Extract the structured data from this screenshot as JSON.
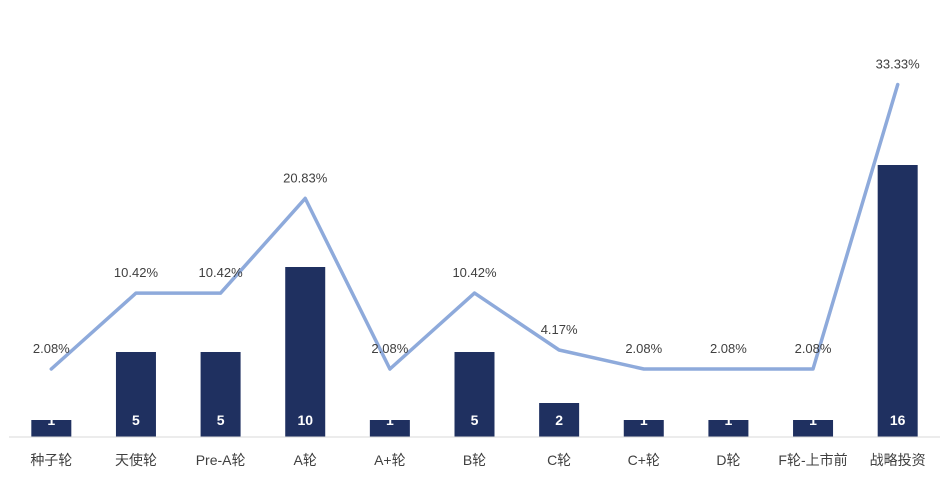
{
  "chart_data": {
    "type": "bar",
    "categories": [
      "种子轮",
      "天使轮",
      "Pre-A轮",
      "A轮",
      "A+轮",
      "B轮",
      "C轮",
      "C+轮",
      "D轮",
      "F轮-上市前",
      "战略投资"
    ],
    "series": [
      {
        "type": "bar",
        "values": [
          1,
          5,
          5,
          10,
          1,
          5,
          2,
          1,
          1,
          1,
          16
        ],
        "labels": [
          "1",
          "5",
          "5",
          "10",
          "1",
          "5",
          "2",
          "1",
          "1",
          "1",
          "16"
        ],
        "color": "#1f3060"
      },
      {
        "type": "line",
        "values": [
          2.08,
          10.42,
          10.42,
          20.83,
          2.08,
          10.42,
          4.17,
          2.08,
          2.08,
          2.08,
          33.33
        ],
        "labels": [
          "2.08%",
          "10.42%",
          "10.42%",
          "20.83%",
          "2.08%",
          "10.42%",
          "4.17%",
          "2.08%",
          "2.08%",
          "2.08%",
          "33.33%"
        ],
        "color": "#8eaadb"
      }
    ],
    "grid": false,
    "legend": "none"
  }
}
